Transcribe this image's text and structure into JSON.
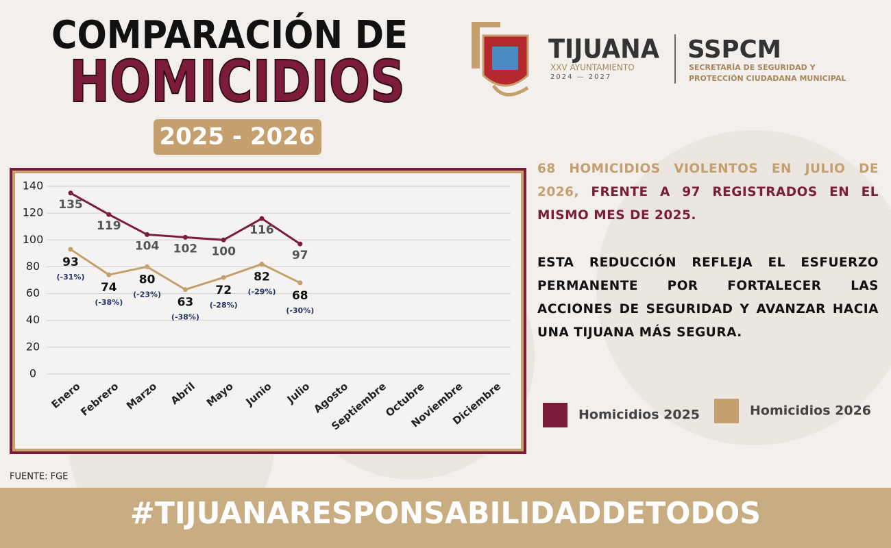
{
  "header": {
    "title_line1": "COMPARACIÓN DE",
    "title_line2": "HOMICIDIOS",
    "period": "2025 - 2026"
  },
  "logo": {
    "city": "TIJUANA",
    "council": "XXV AYUNTAMIENTO",
    "years": "2024 — 2027",
    "agency": "SSPCM",
    "agency_line1": "SECRETARÍA DE SEGURIDAD Y",
    "agency_line2": "PROTECCIÓN CIUDADANA MUNICIPAL"
  },
  "chart_data": {
    "type": "line",
    "categories": [
      "Enero",
      "Febrero",
      "Marzo",
      "Abril",
      "Mayo",
      "Junio",
      "Julio",
      "Agosto",
      "Septiembre",
      "Octubre",
      "Noviembre",
      "Diciembre"
    ],
    "series": [
      {
        "name": "Homicidios 2025",
        "color": "#7a1c3a",
        "values": [
          135,
          119,
          104,
          102,
          100,
          116,
          97,
          null,
          null,
          null,
          null,
          null
        ]
      },
      {
        "name": "Homicidios 2026",
        "color": "#c4a06e",
        "values": [
          93,
          74,
          80,
          63,
          72,
          82,
          68,
          null,
          null,
          null,
          null,
          null
        ],
        "annotations": [
          "(-31%)",
          "(-38%)",
          "(-23%)",
          "(-38%)",
          "(-28%)",
          "(-29%)",
          "(-30%)",
          null,
          null,
          null,
          null,
          null
        ]
      }
    ],
    "ylim": [
      0,
      140
    ],
    "yticks": [
      0,
      20,
      40,
      60,
      80,
      100,
      120,
      140
    ],
    "grid": true
  },
  "statement": {
    "highlight": "68 HOMICIDIOS VIOLENTOS EN JULIO DE 2026,",
    "rest": "FRENTE A 97 REGISTRADOS EN EL MISMO MES DE 2025.",
    "paragraph2": "ESTA REDUCCIÓN REFLEJA EL ESFUERZO PERMANENTE POR FORTALECER LAS ACCIONES DE SEGURIDAD Y AVANZAR HACIA UNA TIJUANA MÁS SEGURA."
  },
  "source": "FUENTE: FGE",
  "footer": "#TIJUANARESPONSABILIDADDETODOS"
}
